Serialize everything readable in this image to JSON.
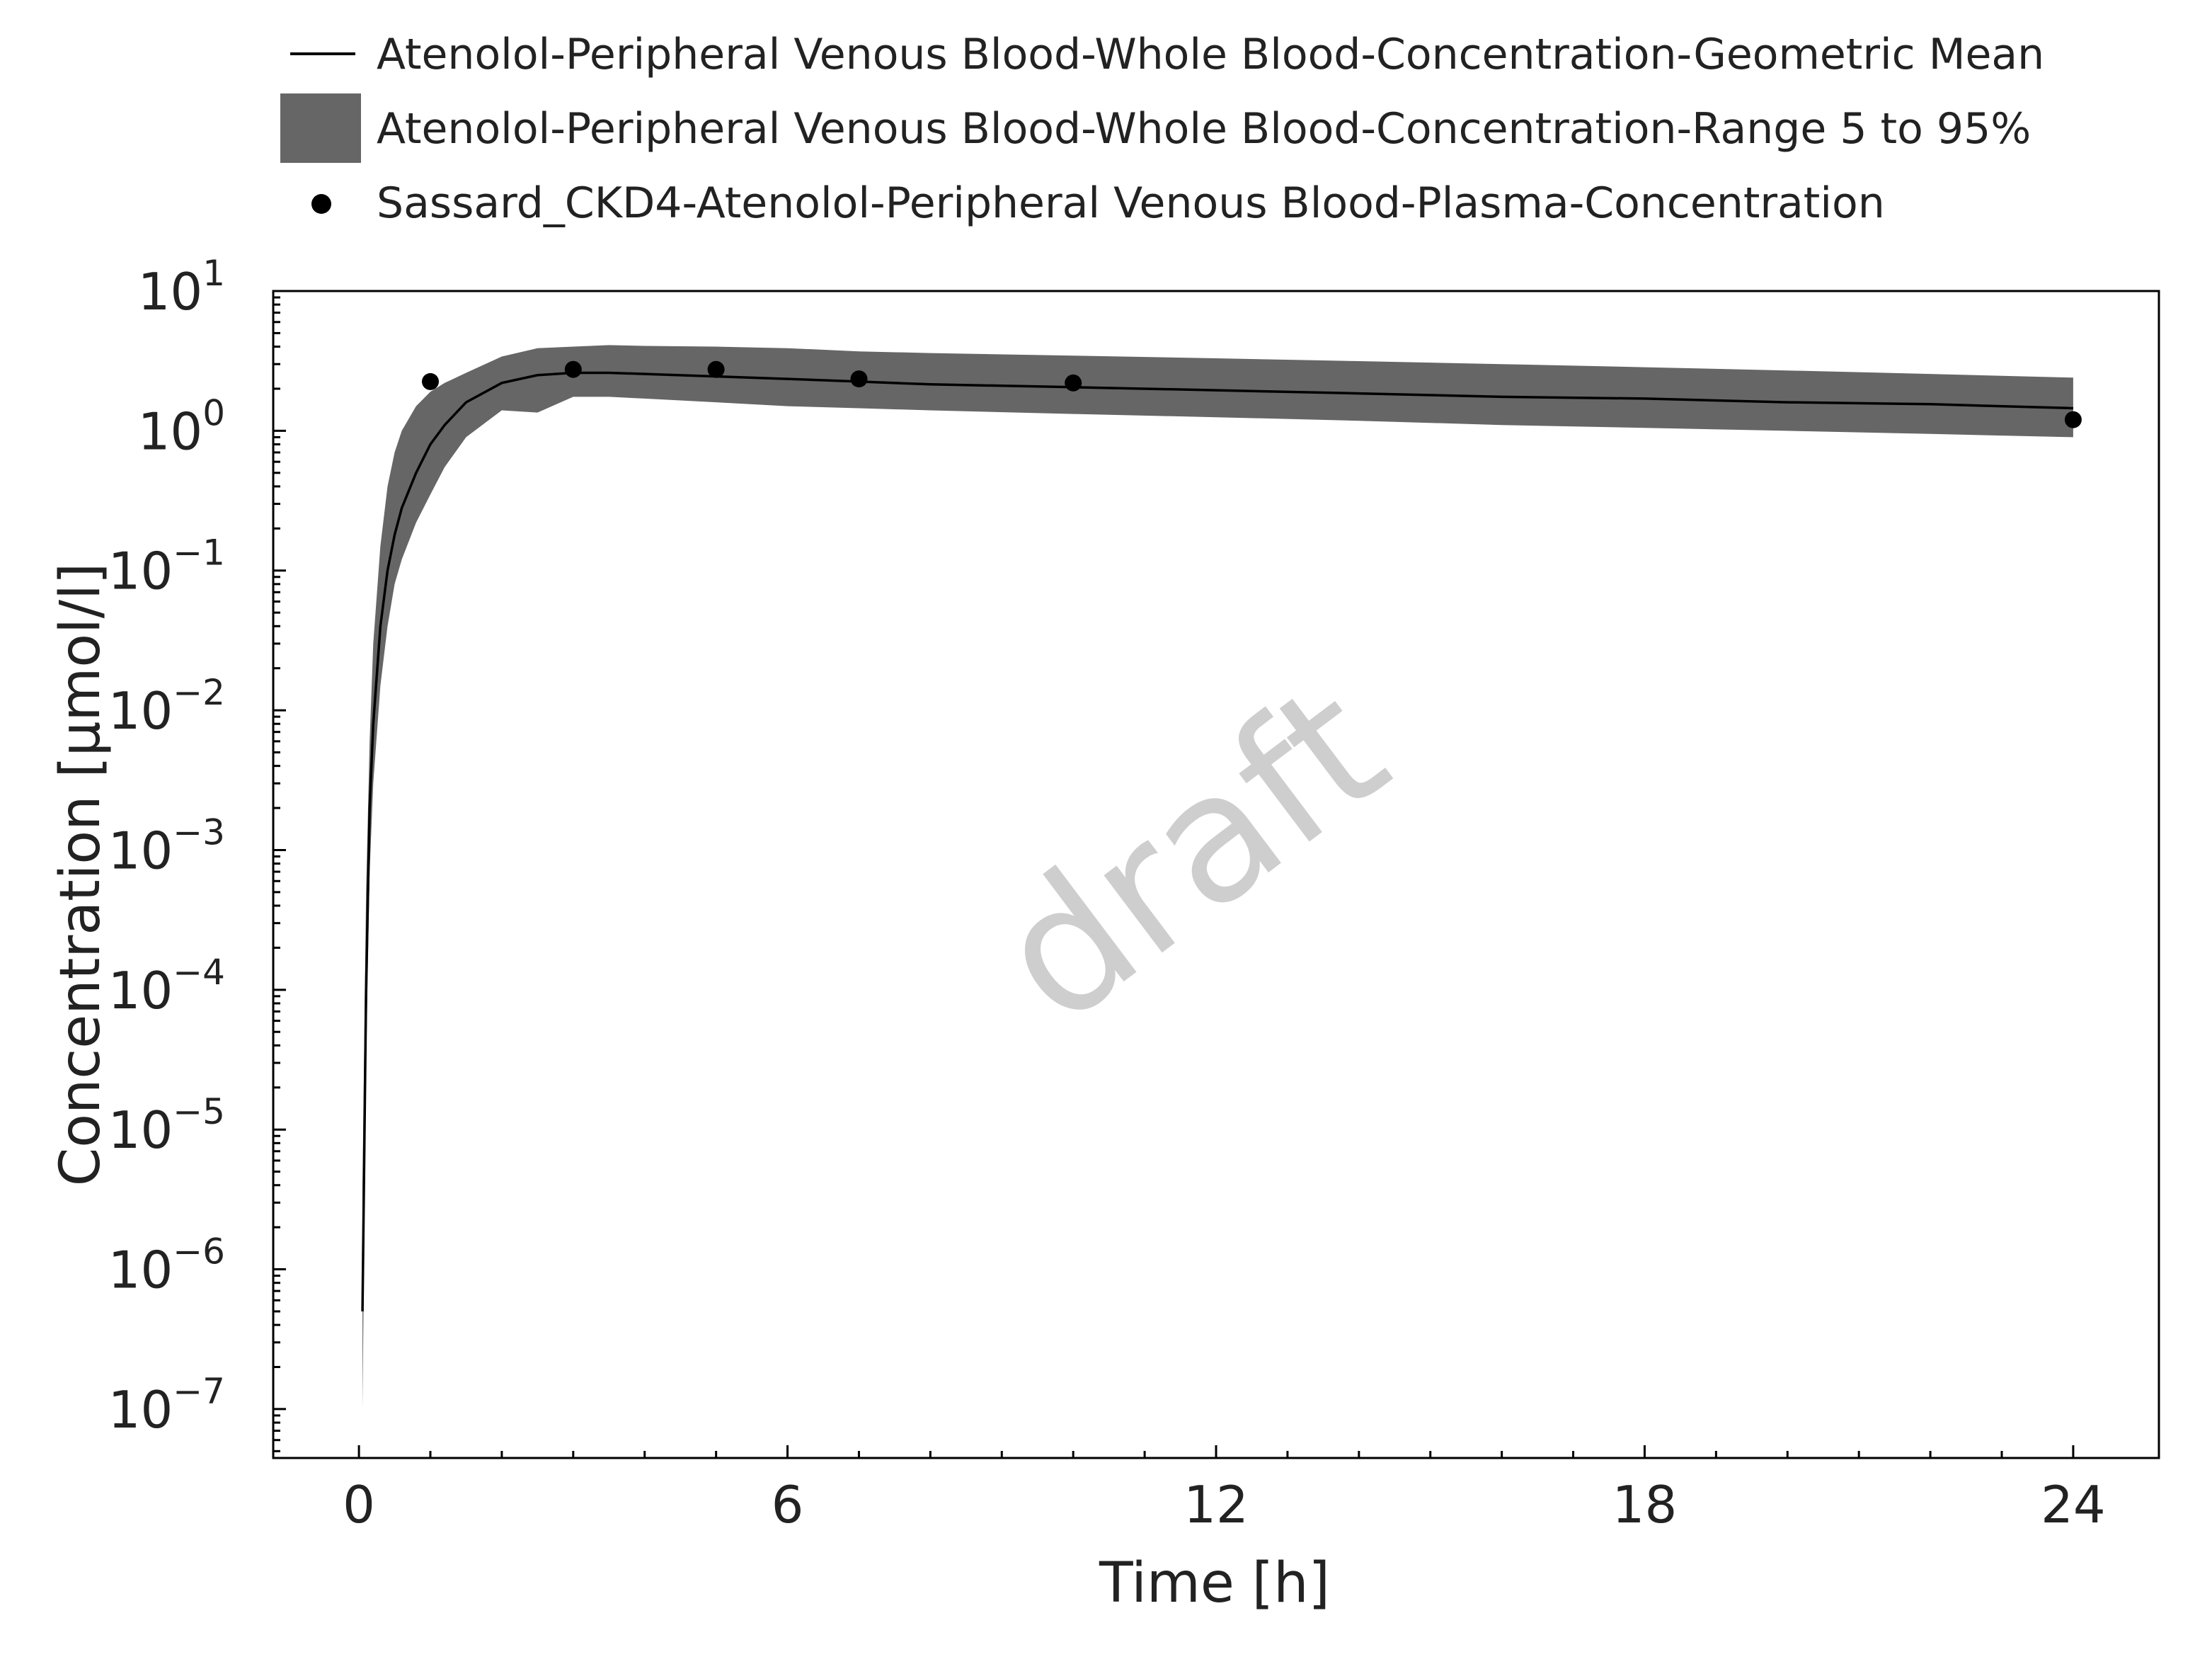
{
  "chart_data": {
    "type": "line",
    "xlabel": "Time [h]",
    "ylabel": "Concentration [µmol/l]",
    "xlim": [
      -1.2,
      25.2
    ],
    "ylim_log10": [
      -7.35,
      1.0
    ],
    "y_scale": "log",
    "x_ticks": [
      0,
      6,
      12,
      18,
      24
    ],
    "y_ticks": [
      {
        "base": "10",
        "exp": "1",
        "value": 10
      },
      {
        "base": "10",
        "exp": "0",
        "value": 1
      },
      {
        "base": "10",
        "exp": "−1",
        "value": 0.1
      },
      {
        "base": "10",
        "exp": "−2",
        "value": 0.01
      },
      {
        "base": "10",
        "exp": "−3",
        "value": 0.001
      },
      {
        "base": "10",
        "exp": "−4",
        "value": 0.0001
      },
      {
        "base": "10",
        "exp": "−5",
        "value": 1e-05
      },
      {
        "base": "10",
        "exp": "−6",
        "value": 1e-06
      },
      {
        "base": "10",
        "exp": "−7",
        "value": 1e-07
      }
    ],
    "grid": false,
    "legend_position": "top",
    "watermark": "draft",
    "series": [
      {
        "name": "Atenolol-Peripheral Venous Blood-Whole Blood-Concentration-Geometric Mean",
        "kind": "line",
        "color": "#000000",
        "x": [
          0.05,
          0.1,
          0.15,
          0.2,
          0.3,
          0.4,
          0.5,
          0.6,
          0.8,
          1.0,
          1.2,
          1.5,
          2.0,
          2.5,
          3.0,
          3.5,
          4.0,
          5.0,
          6.0,
          7.0,
          8.0,
          10.0,
          12.0,
          14.0,
          16.0,
          18.0,
          20.0,
          22.0,
          24.0
        ],
        "y": [
          5e-07,
          0.0001,
          0.002,
          0.008,
          0.04,
          0.1,
          0.18,
          0.28,
          0.5,
          0.8,
          1.1,
          1.6,
          2.2,
          2.5,
          2.6,
          2.6,
          2.55,
          2.45,
          2.35,
          2.25,
          2.15,
          2.05,
          1.95,
          1.85,
          1.75,
          1.7,
          1.6,
          1.55,
          1.45
        ]
      },
      {
        "name": "Atenolol-Peripheral Venous Blood-Whole Blood-Concentration-Range 5 to 95%",
        "kind": "band",
        "color": "#666666",
        "x": [
          0.05,
          0.1,
          0.15,
          0.2,
          0.3,
          0.4,
          0.5,
          0.6,
          0.8,
          1.0,
          1.2,
          1.5,
          2.0,
          2.5,
          3.0,
          3.5,
          4.0,
          5.0,
          6.0,
          7.0,
          8.0,
          10.0,
          12.0,
          14.0,
          16.0,
          18.0,
          20.0,
          22.0,
          24.0
        ],
        "lower": [
          1e-07,
          3e-05,
          0.0007,
          0.003,
          0.015,
          0.04,
          0.08,
          0.12,
          0.22,
          0.35,
          0.55,
          0.9,
          1.4,
          1.35,
          1.75,
          1.75,
          1.7,
          1.6,
          1.5,
          1.45,
          1.4,
          1.32,
          1.25,
          1.18,
          1.1,
          1.05,
          1.0,
          0.95,
          0.9
        ],
        "upper": [
          4e-06,
          0.0005,
          0.006,
          0.03,
          0.15,
          0.4,
          0.7,
          1.0,
          1.5,
          1.9,
          2.2,
          2.6,
          3.4,
          3.9,
          4.0,
          4.1,
          4.05,
          4.0,
          3.9,
          3.7,
          3.6,
          3.45,
          3.3,
          3.15,
          3.0,
          2.85,
          2.7,
          2.55,
          2.4
        ]
      },
      {
        "name": "Sassard_CKD4-Atenolol-Peripheral Venous Blood-Plasma-Concentration",
        "kind": "scatter",
        "color": "#000000",
        "x": [
          1.0,
          3.0,
          5.0,
          7.0,
          10.0,
          24.0
        ],
        "y": [
          2.25,
          2.75,
          2.75,
          2.35,
          2.2,
          1.2
        ]
      }
    ]
  }
}
